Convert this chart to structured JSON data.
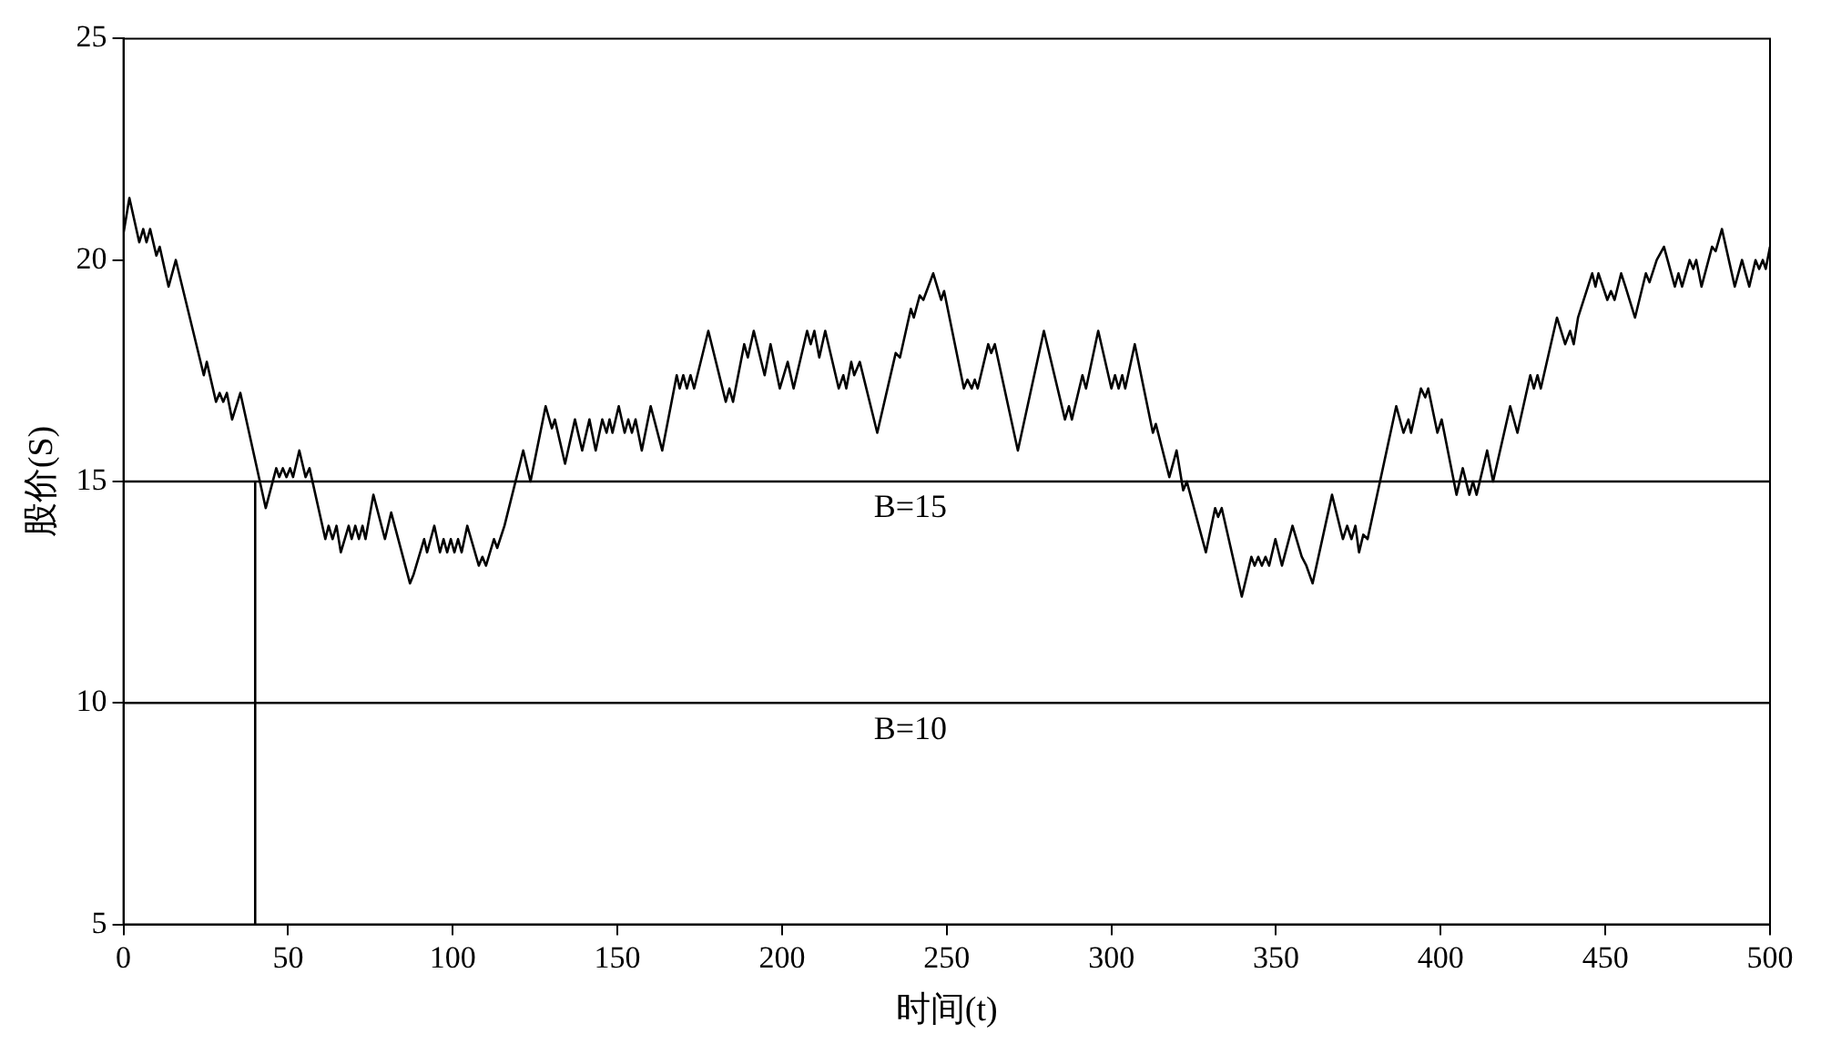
{
  "chart_data": {
    "type": "line",
    "xlabel": "时间(t)",
    "ylabel": "股价(S)",
    "xlim": [
      0,
      500
    ],
    "ylim": [
      5,
      25
    ],
    "xticks": [
      0,
      50,
      100,
      150,
      200,
      250,
      300,
      350,
      400,
      450,
      500
    ],
    "yticks": [
      5,
      10,
      15,
      20,
      25
    ],
    "grid": false,
    "legend": false,
    "marker": "none",
    "line_style": "solid",
    "ref_lines": [
      {
        "axis": "y",
        "value": 15,
        "label": "B=15",
        "color": "#000000"
      },
      {
        "axis": "y",
        "value": 10,
        "label": "B=10",
        "color": "#000000"
      }
    ],
    "series": [
      {
        "color": "#000000",
        "x": [
          0,
          1.8,
          4.8,
          6,
          7,
          8.1,
          10,
          11,
          13.7,
          15.9,
          24.4,
          25.3,
          28.1,
          29.2,
          30.3,
          31.4,
          33,
          35.5,
          43.2,
          46.4,
          47.3,
          48.4,
          49.5,
          50.6,
          51.5,
          53.4,
          55.3,
          56.5,
          61.3,
          62.3,
          63.5,
          64.7,
          66,
          68.4,
          69.3,
          70.4,
          71.5,
          72.6,
          73.5,
          75.9,
          79.4,
          81.3,
          87,
          88.1,
          91.3,
          92.2,
          94.4,
          96.1,
          97.2,
          98.3,
          99.4,
          100.5,
          101.6,
          102.7,
          104.4,
          107.9,
          109,
          110.1,
          112.5,
          113.5,
          115.7,
          121.4,
          123.6,
          128.2,
          130.1,
          131,
          134.1,
          137.1,
          139.3,
          141.5,
          143.4,
          145.4,
          146.7,
          147.6,
          148.5,
          150.4,
          152.2,
          153.3,
          154.4,
          155.5,
          157.4,
          160.1,
          163.6,
          168,
          168.9,
          170,
          171.1,
          172.2,
          173.3,
          177.6,
          182.9,
          184,
          185.1,
          188.5,
          189.6,
          191.4,
          194.7,
          196.5,
          199.3,
          201.7,
          203.5,
          207.6,
          208.7,
          209.8,
          211.3,
          213.1,
          217.2,
          218.6,
          219.5,
          221,
          221.9,
          223.6,
          228.9,
          234.5,
          235.8,
          239.1,
          240,
          241.8,
          242.9,
          245.9,
          248.3,
          249.2,
          255.2,
          256.3,
          257.6,
          258.5,
          259.4,
          262.6,
          263.5,
          264.6,
          271.6,
          279.5,
          285.9,
          287.1,
          288,
          291.2,
          292.3,
          296,
          300,
          301.1,
          302.2,
          303.3,
          304.2,
          307.1,
          312.6,
          313.5,
          317.6,
          319.8,
          321.8,
          322.9,
          328.7,
          331.5,
          332.4,
          333.5,
          339.6,
          342.5,
          343.5,
          344.6,
          345.7,
          346.8,
          347.9,
          349.8,
          351.8,
          355,
          357.8,
          359.2,
          361.1,
          367,
          370.3,
          371.6,
          372.9,
          374.1,
          375.2,
          376.5,
          377.8,
          386.5,
          388.7,
          390.2,
          391,
          394,
          395.3,
          396.2,
          399,
          400.3,
          404.8,
          406.7,
          408.7,
          409.8,
          410.9,
          414.1,
          415.9,
          421.1,
          423.3,
          427.2,
          428.3,
          429.4,
          430.4,
          435.3,
          437.8,
          439.3,
          440.4,
          441.7,
          446,
          447,
          447.9,
          450.6,
          451.7,
          452.8,
          454.8,
          456.1,
          459,
          462.3,
          463.4,
          465.6,
          467.8,
          471.1,
          472.2,
          473.3,
          475.6,
          476.7,
          477.6,
          479.2,
          482.4,
          483.5,
          485.4,
          489.3,
          491.5,
          493.7,
          495.6,
          496.7,
          497.8,
          498.7,
          500
        ],
        "values": [
          20.6,
          21.4,
          20.4,
          20.7,
          20.4,
          20.7,
          20.1,
          20.3,
          19.4,
          20,
          17.4,
          17.7,
          16.8,
          17,
          16.8,
          17,
          16.4,
          17,
          14.4,
          15.3,
          15.1,
          15.3,
          15.1,
          15.3,
          15.1,
          15.7,
          15.1,
          15.3,
          13.7,
          14,
          13.7,
          14,
          13.4,
          14,
          13.7,
          14,
          13.7,
          14,
          13.7,
          14.7,
          13.7,
          14.3,
          12.7,
          12.9,
          13.7,
          13.4,
          14,
          13.4,
          13.7,
          13.4,
          13.7,
          13.4,
          13.7,
          13.4,
          14,
          13.1,
          13.3,
          13.1,
          13.7,
          13.5,
          14,
          15.7,
          15,
          16.7,
          16.2,
          16.4,
          15.4,
          16.4,
          15.7,
          16.4,
          15.7,
          16.4,
          16.1,
          16.4,
          16.1,
          16.7,
          16.1,
          16.4,
          16.1,
          16.4,
          15.7,
          16.7,
          15.7,
          17.4,
          17.1,
          17.4,
          17.1,
          17.4,
          17.1,
          18.4,
          16.8,
          17.1,
          16.8,
          18.1,
          17.8,
          18.4,
          17.4,
          18.1,
          17.1,
          17.7,
          17.1,
          18.4,
          18.1,
          18.4,
          17.8,
          18.4,
          17.1,
          17.4,
          17.1,
          17.7,
          17.4,
          17.7,
          16.1,
          17.9,
          17.8,
          18.9,
          18.7,
          19.2,
          19.1,
          19.7,
          19.1,
          19.3,
          17.1,
          17.3,
          17.1,
          17.3,
          17.1,
          18.1,
          17.9,
          18.1,
          15.7,
          18.4,
          16.4,
          16.7,
          16.4,
          17.4,
          17.1,
          18.4,
          17.1,
          17.4,
          17.1,
          17.4,
          17.1,
          18.1,
          16.1,
          16.3,
          15.1,
          15.7,
          14.8,
          15,
          13.4,
          14.4,
          14.2,
          14.4,
          12.4,
          13.3,
          13.1,
          13.3,
          13.1,
          13.3,
          13.1,
          13.7,
          13.1,
          14,
          13.3,
          13.1,
          12.7,
          14.7,
          13.7,
          14,
          13.7,
          14,
          13.4,
          13.8,
          13.7,
          16.7,
          16.1,
          16.4,
          16.1,
          17.1,
          16.9,
          17.1,
          16.1,
          16.4,
          14.7,
          15.3,
          14.7,
          15,
          14.7,
          15.7,
          15,
          16.7,
          16.1,
          17.4,
          17.1,
          17.4,
          17.1,
          18.7,
          18.1,
          18.4,
          18.1,
          18.7,
          19.7,
          19.4,
          19.7,
          19.1,
          19.3,
          19.1,
          19.7,
          19.4,
          18.7,
          19.7,
          19.5,
          20,
          20.3,
          19.4,
          19.7,
          19.4,
          20,
          19.8,
          20,
          19.4,
          20.3,
          20.2,
          20.7,
          19.4,
          20,
          19.4,
          20,
          19.8,
          20,
          19.8,
          20.3
        ]
      },
      {
        "color": "#000000",
        "x": [
          40,
          40
        ],
        "values": [
          5,
          15
        ]
      }
    ]
  }
}
